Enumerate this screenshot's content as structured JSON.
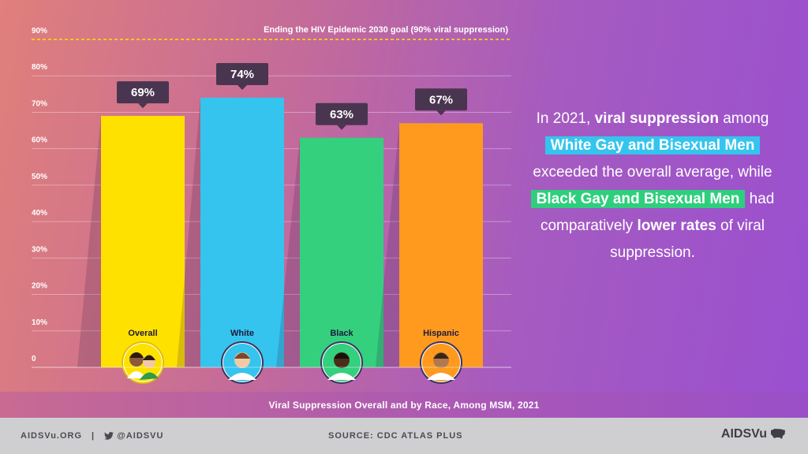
{
  "chart_data": {
    "type": "bar",
    "categories": [
      "Overall",
      "White",
      "Black",
      "Hispanic"
    ],
    "values": [
      69,
      74,
      63,
      67
    ],
    "value_labels": [
      "69%",
      "74%",
      "63%",
      "67%"
    ],
    "colors": [
      "#ffe100",
      "#35c4ee",
      "#34d07e",
      "#ff9a1f"
    ],
    "icons": [
      "two-men-avatar-icon",
      "white-man-avatar-icon",
      "black-man-avatar-icon",
      "hispanic-man-avatar-icon"
    ],
    "ylim": [
      0,
      90
    ],
    "yticks": [
      0,
      10,
      20,
      30,
      40,
      50,
      60,
      70,
      80,
      90
    ],
    "ytick_labels": [
      "0",
      "10%",
      "20%",
      "30%",
      "40%",
      "50%",
      "60%",
      "70%",
      "80%",
      "90%"
    ],
    "goal": {
      "value": 90,
      "label": "Ending the HIV Epidemic 2030 goal (90% viral suppression)",
      "color": "#ffe100"
    },
    "title": "Viral Suppression Overall and by Race, Among MSM, 2021",
    "grid": true
  },
  "caption": "Viral Suppression Overall and by Race, Among MSM, 2021",
  "summary": {
    "parts": [
      {
        "text": "In 2021, ",
        "style": "plain"
      },
      {
        "text": "viral suppression",
        "style": "bold"
      },
      {
        "text": " among ",
        "style": "plain"
      },
      {
        "text": "White Gay and Bisexual Men",
        "style": "highlight-blue"
      },
      {
        "text": " exceeded the overall average, while ",
        "style": "plain"
      },
      {
        "text": "Black Gay and Bisexual Men",
        "style": "highlight-green"
      },
      {
        "text": " had comparatively ",
        "style": "plain"
      },
      {
        "text": "lower rates",
        "style": "bold"
      },
      {
        "text": " of viral suppression.",
        "style": "plain"
      }
    ]
  },
  "footer": {
    "website": "AIDSVu.ORG",
    "separator": "|",
    "twitter_handle": "@AIDSVU",
    "source": "SOURCE: CDC ATLAS PLUS",
    "brand": "AIDSVu"
  }
}
